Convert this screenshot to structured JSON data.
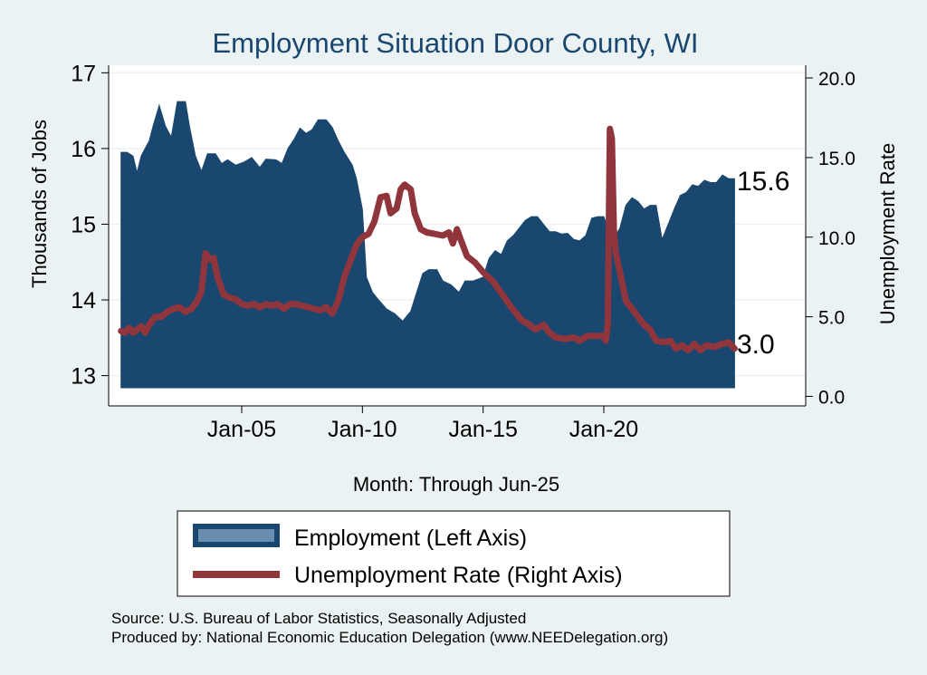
{
  "chart_data": {
    "type": "area",
    "title": "Employment Situation Door  County, WI",
    "xlabel": "Month: Through Jun-25",
    "ylabel_left": "Thousands of Jobs",
    "ylabel_right": "Unemployment Rate",
    "x_ticks": [
      "Jan-05",
      "Jan-10",
      "Jan-15",
      "Jan-20"
    ],
    "ylim_left": [
      12.6,
      17.1
    ],
    "yticks_left": [
      "13",
      "14",
      "15",
      "16",
      "17"
    ],
    "ylim_right": [
      -0.6,
      20.8
    ],
    "yticks_right": [
      "0.0",
      "5.0",
      "10.0",
      "15.0",
      "20.0"
    ],
    "grid": true,
    "legend_position": "bottom",
    "colors": {
      "employment": "#1a476f",
      "unemployment": "#90353b",
      "background": "#eaf2f3",
      "plot_bg": "#ffffff",
      "grid": "#eaf2f3"
    },
    "series": [
      {
        "name": "Employment (Left Axis)",
        "kind": "area",
        "end_label": "15.6",
        "points": [
          [
            "2000-01",
            15.95
          ],
          [
            "2000-04",
            15.95
          ],
          [
            "2000-07",
            15.9
          ],
          [
            "2000-09",
            15.68
          ],
          [
            "2000-11",
            15.9
          ],
          [
            "2001-01",
            16.0
          ],
          [
            "2001-03",
            16.1
          ],
          [
            "2001-05",
            16.3
          ],
          [
            "2001-08",
            16.57
          ],
          [
            "2001-11",
            16.3
          ],
          [
            "2002-02",
            16.15
          ],
          [
            "2002-05",
            16.62
          ],
          [
            "2002-09",
            16.62
          ],
          [
            "2002-11",
            16.3
          ],
          [
            "2003-02",
            15.9
          ],
          [
            "2003-05",
            15.7
          ],
          [
            "2003-08",
            15.93
          ],
          [
            "2003-12",
            15.93
          ],
          [
            "2004-03",
            15.8
          ],
          [
            "2004-06",
            15.85
          ],
          [
            "2004-10",
            15.78
          ],
          [
            "2005-02",
            15.82
          ],
          [
            "2005-06",
            15.88
          ],
          [
            "2005-10",
            15.75
          ],
          [
            "2006-01",
            15.86
          ],
          [
            "2006-06",
            15.85
          ],
          [
            "2006-09",
            15.8
          ],
          [
            "2006-12",
            16.0
          ],
          [
            "2007-03",
            16.12
          ],
          [
            "2007-06",
            16.27
          ],
          [
            "2007-09",
            16.2
          ],
          [
            "2007-12",
            16.25
          ],
          [
            "2008-03",
            16.38
          ],
          [
            "2008-07",
            16.38
          ],
          [
            "2008-10",
            16.28
          ],
          [
            "2009-01",
            16.1
          ],
          [
            "2009-04",
            15.95
          ],
          [
            "2009-08",
            15.78
          ],
          [
            "2009-10",
            15.6
          ],
          [
            "2010-01",
            15.2
          ],
          [
            "2010-03",
            14.3
          ],
          [
            "2010-06",
            14.1
          ],
          [
            "2010-09",
            14.0
          ],
          [
            "2011-01",
            13.88
          ],
          [
            "2011-05",
            13.82
          ],
          [
            "2011-09",
            13.72
          ],
          [
            "2012-01",
            13.85
          ],
          [
            "2012-04",
            14.1
          ],
          [
            "2012-07",
            14.35
          ],
          [
            "2012-10",
            14.4
          ],
          [
            "2013-02",
            14.4
          ],
          [
            "2013-05",
            14.25
          ],
          [
            "2013-09",
            14.2
          ],
          [
            "2014-01",
            14.1
          ],
          [
            "2014-04",
            14.25
          ],
          [
            "2014-08",
            14.25
          ],
          [
            "2015-01",
            14.3
          ],
          [
            "2015-04",
            14.55
          ],
          [
            "2015-07",
            14.65
          ],
          [
            "2015-10",
            14.6
          ],
          [
            "2016-01",
            14.78
          ],
          [
            "2016-04",
            14.85
          ],
          [
            "2016-07",
            14.95
          ],
          [
            "2016-10",
            15.05
          ],
          [
            "2017-01",
            15.1
          ],
          [
            "2017-04",
            15.1
          ],
          [
            "2017-07",
            15.0
          ],
          [
            "2017-10",
            14.9
          ],
          [
            "2018-01",
            14.9
          ],
          [
            "2018-04",
            14.87
          ],
          [
            "2018-07",
            14.88
          ],
          [
            "2018-10",
            14.8
          ],
          [
            "2019-01",
            14.78
          ],
          [
            "2019-04",
            14.85
          ],
          [
            "2019-07",
            15.08
          ],
          [
            "2019-10",
            15.1
          ],
          [
            "2020-01",
            15.1
          ],
          [
            "2020-03",
            14.95
          ],
          [
            "2020-04",
            14.62
          ],
          [
            "2020-06",
            14.8
          ],
          [
            "2020-09",
            14.95
          ],
          [
            "2020-12",
            15.25
          ],
          [
            "2021-03",
            15.35
          ],
          [
            "2021-06",
            15.3
          ],
          [
            "2021-09",
            15.2
          ],
          [
            "2021-12",
            15.25
          ],
          [
            "2022-03",
            15.25
          ],
          [
            "2022-06",
            14.8
          ],
          [
            "2022-09",
            15.0
          ],
          [
            "2022-12",
            15.2
          ],
          [
            "2023-03",
            15.38
          ],
          [
            "2023-06",
            15.42
          ],
          [
            "2023-09",
            15.52
          ],
          [
            "2023-12",
            15.5
          ],
          [
            "2024-03",
            15.58
          ],
          [
            "2024-06",
            15.55
          ],
          [
            "2024-09",
            15.55
          ],
          [
            "2024-12",
            15.65
          ],
          [
            "2025-03",
            15.6
          ],
          [
            "2025-06",
            15.6
          ]
        ]
      },
      {
        "name": "Unemployment Rate (Right Axis)",
        "kind": "line",
        "end_label": "3.0",
        "points": [
          [
            "2000-01",
            4.1
          ],
          [
            "2000-03",
            4.0
          ],
          [
            "2000-05",
            4.3
          ],
          [
            "2000-07",
            4.0
          ],
          [
            "2000-09",
            4.2
          ],
          [
            "2000-11",
            4.4
          ],
          [
            "2001-01",
            4.0
          ],
          [
            "2001-03",
            4.5
          ],
          [
            "2001-06",
            5.0
          ],
          [
            "2001-09",
            5.0
          ],
          [
            "2001-12",
            5.3
          ],
          [
            "2002-03",
            5.5
          ],
          [
            "2002-06",
            5.6
          ],
          [
            "2002-09",
            5.3
          ],
          [
            "2002-12",
            5.5
          ],
          [
            "2003-03",
            6.0
          ],
          [
            "2003-05",
            6.6
          ],
          [
            "2003-07",
            9.0
          ],
          [
            "2003-09",
            8.6
          ],
          [
            "2003-11",
            8.7
          ],
          [
            "2004-01",
            7.5
          ],
          [
            "2004-04",
            6.4
          ],
          [
            "2004-07",
            6.2
          ],
          [
            "2004-10",
            6.1
          ],
          [
            "2005-01",
            5.8
          ],
          [
            "2005-04",
            5.7
          ],
          [
            "2005-07",
            5.8
          ],
          [
            "2005-10",
            5.6
          ],
          [
            "2006-01",
            5.8
          ],
          [
            "2006-04",
            5.7
          ],
          [
            "2006-07",
            5.8
          ],
          [
            "2006-10",
            5.5
          ],
          [
            "2007-01",
            5.8
          ],
          [
            "2007-04",
            5.8
          ],
          [
            "2007-07",
            5.7
          ],
          [
            "2007-10",
            5.6
          ],
          [
            "2008-01",
            5.5
          ],
          [
            "2008-04",
            5.4
          ],
          [
            "2008-07",
            5.6
          ],
          [
            "2008-10",
            5.2
          ],
          [
            "2009-01",
            6.0
          ],
          [
            "2009-04",
            7.5
          ],
          [
            "2009-07",
            8.5
          ],
          [
            "2009-10",
            9.5
          ],
          [
            "2010-01",
            10.0
          ],
          [
            "2010-04",
            10.2
          ],
          [
            "2010-07",
            11.0
          ],
          [
            "2010-10",
            12.5
          ],
          [
            "2011-01",
            12.6
          ],
          [
            "2011-03",
            11.5
          ],
          [
            "2011-06",
            11.8
          ],
          [
            "2011-08",
            13.0
          ],
          [
            "2011-10",
            13.3
          ],
          [
            "2012-01",
            13.0
          ],
          [
            "2012-03",
            11.5
          ],
          [
            "2012-06",
            10.5
          ],
          [
            "2012-09",
            10.3
          ],
          [
            "2013-01",
            10.2
          ],
          [
            "2013-05",
            10.1
          ],
          [
            "2013-08",
            10.3
          ],
          [
            "2013-10",
            9.6
          ],
          [
            "2013-12",
            10.5
          ],
          [
            "2014-02",
            9.8
          ],
          [
            "2014-05",
            8.8
          ],
          [
            "2014-09",
            8.4
          ],
          [
            "2015-01",
            7.8
          ],
          [
            "2015-06",
            7.2
          ],
          [
            "2015-10",
            6.5
          ],
          [
            "2016-03",
            5.6
          ],
          [
            "2016-08",
            4.8
          ],
          [
            "2016-12",
            4.5
          ],
          [
            "2017-03",
            4.2
          ],
          [
            "2017-07",
            4.5
          ],
          [
            "2017-10",
            4.0
          ],
          [
            "2018-01",
            3.7
          ],
          [
            "2018-06",
            3.6
          ],
          [
            "2018-10",
            3.7
          ],
          [
            "2019-01",
            3.5
          ],
          [
            "2019-05",
            3.8
          ],
          [
            "2019-09",
            3.8
          ],
          [
            "2020-01",
            3.8
          ],
          [
            "2020-02",
            3.5
          ],
          [
            "2020-03",
            4.5
          ],
          [
            "2020-04",
            16.8
          ],
          [
            "2020-05",
            16.2
          ],
          [
            "2020-06",
            10.5
          ],
          [
            "2020-07",
            9.0
          ],
          [
            "2020-09",
            7.8
          ],
          [
            "2020-12",
            6.0
          ],
          [
            "2021-03",
            5.5
          ],
          [
            "2021-06",
            5.0
          ],
          [
            "2021-09",
            4.5
          ],
          [
            "2021-12",
            4.2
          ],
          [
            "2022-03",
            3.5
          ],
          [
            "2022-07",
            3.4
          ],
          [
            "2022-10",
            3.5
          ],
          [
            "2023-01",
            3.0
          ],
          [
            "2023-04",
            3.2
          ],
          [
            "2023-07",
            2.9
          ],
          [
            "2023-10",
            3.3
          ],
          [
            "2024-01",
            2.9
          ],
          [
            "2024-04",
            3.2
          ],
          [
            "2024-08",
            3.1
          ],
          [
            "2024-12",
            3.3
          ],
          [
            "2025-03",
            3.4
          ],
          [
            "2025-06",
            3.0
          ]
        ]
      }
    ]
  },
  "notes": {
    "source": "Source: U.S. Bureau of Labor Statistics, Seasonally Adjusted",
    "producer": "Produced by: National Economic Education Delegation (www.NEEDelegation.org)"
  }
}
